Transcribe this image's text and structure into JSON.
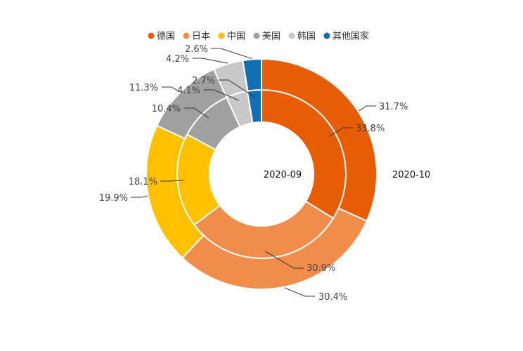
{
  "chart_data": {
    "type": "pie",
    "subtype": "nested-donut",
    "legend": {
      "placement": "top-center",
      "entries": [
        {
          "label": "德国",
          "color": "#E85D04"
        },
        {
          "label": "日本",
          "color": "#F28C4A"
        },
        {
          "label": "中国",
          "color": "#FFC000"
        },
        {
          "label": "美国",
          "color": "#A0A0A0"
        },
        {
          "label": "韩国",
          "color": "#C8C8C8"
        },
        {
          "label": "其他国家",
          "color": "#0E6FB5"
        }
      ]
    },
    "categories": [
      "德国",
      "日本",
      "中国",
      "美国",
      "韩国",
      "其他国家"
    ],
    "series": [
      {
        "name": "2020-09",
        "ring": "inner",
        "values": [
          33.8,
          30.9,
          18.1,
          10.4,
          4.1,
          2.7
        ],
        "labels": [
          "33.8%",
          "30.9%",
          "18.1%",
          "10.4%",
          "4.1%",
          "2.7%"
        ]
      },
      {
        "name": "2020-10",
        "ring": "outer",
        "values": [
          31.7,
          30.4,
          19.9,
          11.3,
          4.2,
          2.6
        ],
        "labels": [
          "31.7%",
          "30.4%",
          "19.9%",
          "11.3%",
          "4.2%",
          "2.6%"
        ]
      }
    ]
  }
}
